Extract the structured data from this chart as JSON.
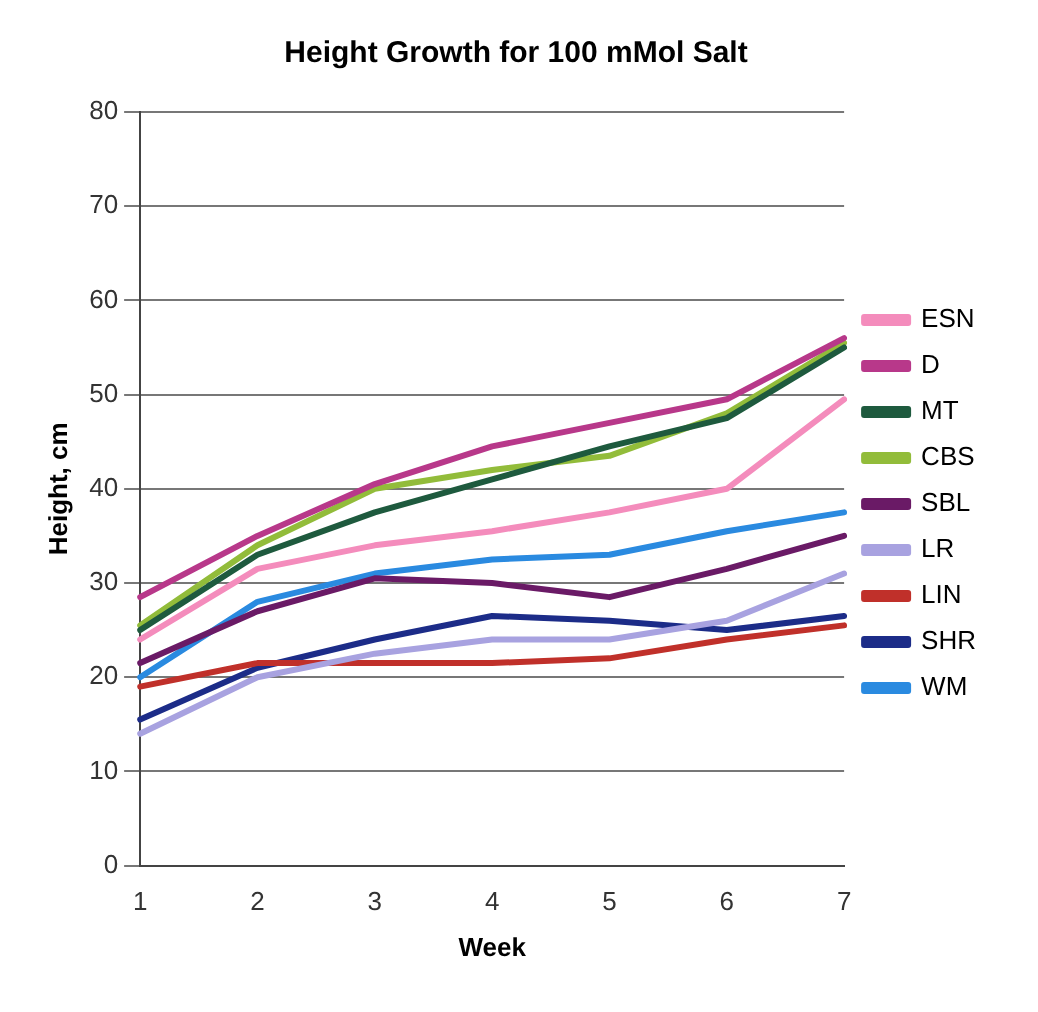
{
  "chart_data": {
    "type": "line",
    "title": "Height Growth for 100 mMol Salt",
    "xlabel": "Week",
    "ylabel": "Height, cm",
    "categories": [
      "1",
      "2",
      "3",
      "4",
      "5",
      "6",
      "7"
    ],
    "ylim": [
      0,
      80
    ],
    "yticks": [
      0,
      10,
      20,
      30,
      40,
      50,
      60,
      70,
      80
    ],
    "grid": "y",
    "legend": "right",
    "marker": "none",
    "line_style": "solid",
    "series": [
      {
        "name": "ESN",
        "color": "#f48cbc",
        "values": [
          24,
          31.5,
          34,
          35.5,
          37.5,
          40,
          49.5
        ]
      },
      {
        "name": "D",
        "color": "#b8388a",
        "values": [
          28.5,
          35,
          40.5,
          44.5,
          47,
          49.5,
          56
        ]
      },
      {
        "name": "MT",
        "color": "#1e5a3e",
        "values": [
          25,
          33,
          37.5,
          41,
          44.5,
          47.5,
          55
        ]
      },
      {
        "name": "CBS",
        "color": "#92bc3a",
        "values": [
          25.5,
          34,
          40,
          42,
          43.5,
          48,
          55.5
        ]
      },
      {
        "name": "SBL",
        "color": "#6a1a66",
        "values": [
          21.5,
          27,
          30.5,
          30,
          28.5,
          31.5,
          35
        ]
      },
      {
        "name": "LR",
        "color": "#a8a2e0",
        "values": [
          14,
          20,
          22.5,
          24,
          24,
          26,
          31
        ]
      },
      {
        "name": "LIN",
        "color": "#c0302a",
        "values": [
          19,
          21.5,
          21.5,
          21.5,
          22,
          24,
          25.5
        ]
      },
      {
        "name": "SHR",
        "color": "#1c2c88",
        "values": [
          15.5,
          21,
          24,
          26.5,
          26,
          25,
          26.5
        ]
      },
      {
        "name": "WM",
        "color": "#2a8ae0",
        "values": [
          20,
          28,
          31,
          32.5,
          33,
          35.5,
          37.5
        ]
      }
    ]
  }
}
